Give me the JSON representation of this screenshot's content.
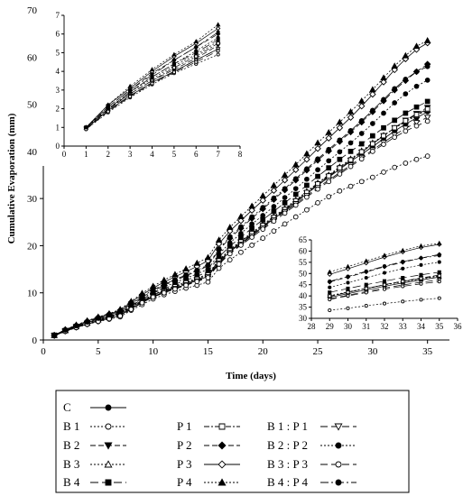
{
  "chart_data": {
    "type": "line",
    "xlabel": "Time (days)",
    "ylabel": "Cumulative Evaporation (mm)",
    "xlim": [
      0,
      37
    ],
    "ylim": [
      0,
      70
    ],
    "xticks": [
      0,
      5,
      10,
      15,
      20,
      25,
      30,
      35
    ],
    "yticks": [
      0,
      10,
      20,
      30,
      40,
      50,
      60,
      70
    ],
    "x": [
      1,
      2,
      3,
      4,
      5,
      6,
      7,
      8,
      9,
      10,
      11,
      12,
      13,
      14,
      15,
      16,
      17,
      18,
      19,
      20,
      21,
      22,
      23,
      24,
      25,
      26,
      27,
      28,
      29,
      30,
      31,
      32,
      33,
      34,
      35
    ],
    "series": [
      {
        "name": "C",
        "marker": "circle-filled",
        "dash": "",
        "values": [
          0.95,
          1.9,
          2.7,
          3.4,
          4.0,
          4.6,
          5.2,
          6.6,
          8.0,
          9.2,
          10.2,
          11.0,
          11.8,
          12.6,
          13.5,
          16.5,
          18.7,
          20.5,
          22.3,
          24.0,
          25.7,
          27.4,
          29.2,
          31.0,
          32.8,
          34.5,
          36.2,
          37.9,
          39.4,
          41.0,
          42.7,
          44.3,
          45.8,
          47.1,
          48.4
        ]
      },
      {
        "name": "B 1",
        "marker": "circle-open",
        "dash": "2,2",
        "values": [
          0.9,
          1.8,
          2.6,
          3.3,
          3.9,
          4.4,
          4.9,
          6.3,
          7.5,
          8.7,
          9.6,
          10.3,
          11.0,
          11.6,
          12.3,
          15.2,
          17.0,
          18.6,
          20.1,
          21.6,
          23.1,
          24.6,
          26.1,
          27.6,
          29.1,
          30.4,
          31.6,
          32.6,
          33.6,
          34.5,
          35.6,
          36.6,
          37.5,
          38.3,
          39.0
        ]
      },
      {
        "name": "B 2",
        "marker": "triangle-down-filled",
        "dash": "6,3",
        "values": [
          0.95,
          1.95,
          2.8,
          3.5,
          4.1,
          4.7,
          5.4,
          6.8,
          8.2,
          9.4,
          10.4,
          11.2,
          12.0,
          12.8,
          13.7,
          16.7,
          18.9,
          20.7,
          22.5,
          24.2,
          25.9,
          27.6,
          29.4,
          31.2,
          33.0,
          34.7,
          36.4,
          38.1,
          39.8,
          41.6,
          43.3,
          45.0,
          46.6,
          48.0,
          49.3
        ]
      },
      {
        "name": "B 3",
        "marker": "triangle-up-open",
        "dash": "2,2",
        "values": [
          1.0,
          2.0,
          2.9,
          3.6,
          4.3,
          4.9,
          5.6,
          7.0,
          8.4,
          9.6,
          10.6,
          11.5,
          12.3,
          13.1,
          14.0,
          17.0,
          19.2,
          21.0,
          22.8,
          24.5,
          26.2,
          27.9,
          29.7,
          31.5,
          33.3,
          35.0,
          36.7,
          38.4,
          40.1,
          41.8,
          43.4,
          44.9,
          46.3,
          47.6,
          48.8
        ]
      },
      {
        "name": "B 4",
        "marker": "square-filled",
        "dash": "9,4",
        "values": [
          1.0,
          2.0,
          2.9,
          3.7,
          4.4,
          5.0,
          5.7,
          7.2,
          8.6,
          9.9,
          10.9,
          11.8,
          12.7,
          13.5,
          14.5,
          17.6,
          19.9,
          21.8,
          23.7,
          25.5,
          27.3,
          29.1,
          30.9,
          32.8,
          34.7,
          36.5,
          38.3,
          40.0,
          41.6,
          43.3,
          45.0,
          46.6,
          48.1,
          49.4,
          50.6
        ]
      },
      {
        "name": "P 1",
        "marker": "square-open",
        "dash": "6,2,2,2",
        "values": [
          1.0,
          2.0,
          2.8,
          3.5,
          4.2,
          4.8,
          5.5,
          6.9,
          8.3,
          9.5,
          10.5,
          11.3,
          12.1,
          12.9,
          13.8,
          16.8,
          19.0,
          20.8,
          22.6,
          24.3,
          26.0,
          27.7,
          29.5,
          31.3,
          33.1,
          34.8,
          36.5,
          38.2,
          39.9,
          41.6,
          43.3,
          45.0,
          46.5,
          47.8,
          49.0
        ]
      },
      {
        "name": "P 2",
        "marker": "diamond-filled",
        "dash": "6,3",
        "values": [
          1.0,
          2.1,
          3.0,
          3.9,
          4.6,
          5.3,
          6.0,
          7.6,
          9.1,
          10.4,
          11.6,
          12.6,
          13.6,
          14.6,
          15.7,
          19.1,
          21.6,
          23.7,
          25.8,
          27.8,
          29.8,
          31.8,
          33.9,
          36.0,
          38.1,
          40.1,
          42.1,
          44.1,
          46.2,
          48.4,
          50.7,
          53.0,
          55.0,
          56.9,
          58.5
        ]
      },
      {
        "name": "P 3",
        "marker": "diamond-open",
        "dash": "",
        "values": [
          1.0,
          2.2,
          3.1,
          4.0,
          4.8,
          5.5,
          6.3,
          8.0,
          9.6,
          11.0,
          12.3,
          13.4,
          14.5,
          15.6,
          16.8,
          20.4,
          23.1,
          25.3,
          27.5,
          29.6,
          31.7,
          33.9,
          36.1,
          38.3,
          40.6,
          42.8,
          45.0,
          47.2,
          49.6,
          52.1,
          54.7,
          57.3,
          59.6,
          61.6,
          63.0
        ]
      },
      {
        "name": "P 4",
        "marker": "triangle-up-filled",
        "dash": "2,2",
        "values": [
          1.0,
          2.2,
          3.2,
          4.1,
          4.9,
          5.6,
          6.5,
          8.2,
          9.9,
          11.4,
          12.7,
          13.9,
          15.1,
          16.3,
          17.5,
          21.2,
          23.9,
          26.2,
          28.4,
          30.6,
          32.8,
          35.0,
          37.2,
          39.5,
          41.8,
          44.0,
          46.2,
          48.4,
          50.7,
          53.1,
          55.6,
          58.1,
          60.3,
          62.3,
          63.5
        ]
      },
      {
        "name": "B 1 : P 1",
        "marker": "triangle-down-open",
        "dash": "8,4",
        "values": [
          0.95,
          1.9,
          2.7,
          3.4,
          4.0,
          4.6,
          5.2,
          6.6,
          8.0,
          9.2,
          10.1,
          10.9,
          11.7,
          12.5,
          13.4,
          16.3,
          18.5,
          20.3,
          22.1,
          23.8,
          25.5,
          27.2,
          28.9,
          30.6,
          32.3,
          33.9,
          35.5,
          37.1,
          38.7,
          40.3,
          41.9,
          43.5,
          44.9,
          46.1,
          47.2
        ]
      },
      {
        "name": "B 2 : P 2",
        "marker": "circle-filled",
        "dash": "2,2",
        "values": [
          1.0,
          2.0,
          2.9,
          3.7,
          4.4,
          5.1,
          5.8,
          7.3,
          8.8,
          10.1,
          11.2,
          12.2,
          13.1,
          14.0,
          15.0,
          18.2,
          20.6,
          22.6,
          24.6,
          26.4,
          28.3,
          30.2,
          32.1,
          34.1,
          36.1,
          38.0,
          39.9,
          41.8,
          43.8,
          45.9,
          48.1,
          50.3,
          52.2,
          53.8,
          55.1
        ]
      },
      {
        "name": "B 3 : P 3",
        "marker": "circle-open",
        "dash": "8,4",
        "values": [
          0.9,
          1.85,
          2.65,
          3.35,
          3.95,
          4.5,
          5.1,
          6.5,
          7.9,
          9.1,
          10.0,
          10.8,
          11.6,
          12.4,
          13.2,
          16.1,
          18.3,
          20.1,
          21.8,
          23.5,
          25.2,
          26.9,
          28.6,
          30.3,
          32.0,
          33.6,
          35.2,
          36.8,
          38.4,
          40.0,
          41.5,
          43.0,
          44.3,
          45.4,
          46.4
        ]
      },
      {
        "name": "B 4 : P 4",
        "marker": "circle-filled",
        "dash": "9,3,2,3",
        "values": [
          1.0,
          2.1,
          3.0,
          3.8,
          4.6,
          5.3,
          6.1,
          7.7,
          9.2,
          10.6,
          11.8,
          12.8,
          13.8,
          14.8,
          15.9,
          19.3,
          21.9,
          24.0,
          26.1,
          28.1,
          30.1,
          32.1,
          34.2,
          36.3,
          38.4,
          40.4,
          42.4,
          44.4,
          46.5,
          48.7,
          51.0,
          53.3,
          55.3,
          56.9,
          58.0
        ]
      }
    ],
    "inset_early": {
      "xlim": [
        0,
        8
      ],
      "ylim": [
        0,
        7
      ],
      "xticks": [
        0,
        1,
        2,
        3,
        4,
        5,
        6,
        7,
        8
      ],
      "yticks": [
        0,
        1,
        2,
        3,
        4,
        5,
        6,
        7
      ],
      "x_from": 1,
      "x_to": 7
    },
    "inset_late": {
      "xlim": [
        28,
        36
      ],
      "ylim": [
        30,
        65
      ],
      "xticks": [
        28,
        29,
        30,
        31,
        32,
        33,
        34,
        35,
        36
      ],
      "yticks": [
        30,
        35,
        40,
        45,
        50,
        55,
        60,
        65
      ],
      "x_from": 29,
      "x_to": 35
    },
    "legend": {
      "position": "bottom",
      "columns": [
        [
          "C",
          "B 1",
          "B 2",
          "B 3",
          "B 4"
        ],
        [
          "P 1",
          "P 2",
          "P 3",
          "P 4"
        ],
        [
          "B 1 : P 1",
          "B 2 : P 2",
          "B 3 : P 3",
          "B 4 : P 4"
        ]
      ]
    }
  }
}
